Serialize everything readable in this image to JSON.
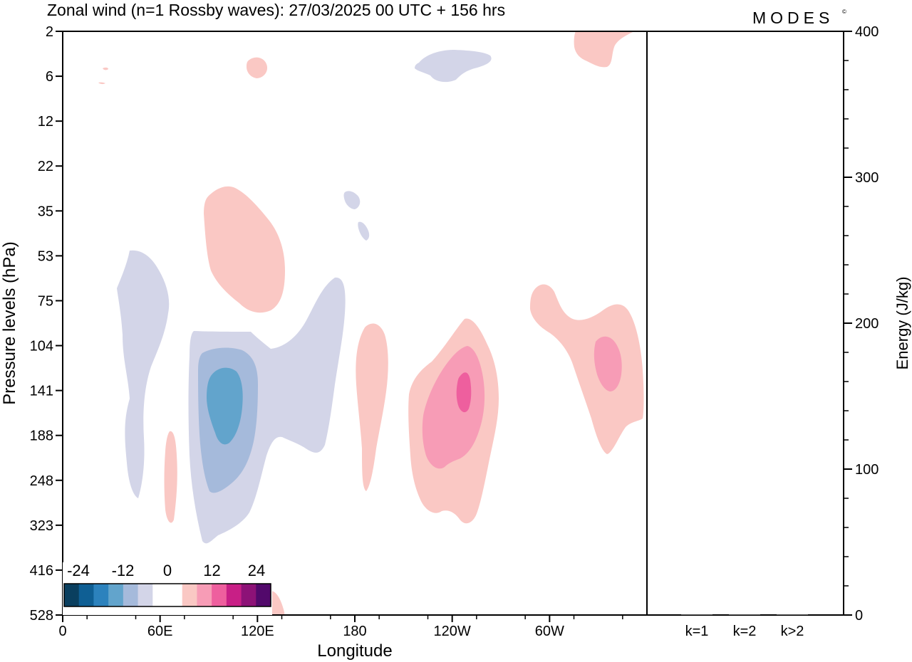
{
  "title": "Zonal wind (n=1 Rossby waves):  27/03/2025  00 UTC  + 156 hrs",
  "brand": "MODES",
  "brand_mark": "©",
  "chart_data": [
    {
      "type": "heatmap",
      "title": "Zonal wind (n=1 Rossby waves):  27/03/2025  00 UTC  + 156 hrs",
      "xlabel": "Longitude",
      "ylabel": "Pressure levels (hPa)",
      "x_ticks": [
        "0",
        "60E",
        "120E",
        "180",
        "120W",
        "60W"
      ],
      "x_tick_values": [
        0,
        60,
        120,
        180,
        240,
        300
      ],
      "xlim": [
        0,
        360
      ],
      "y_ticks": [
        "2",
        "6",
        "12",
        "22",
        "35",
        "53",
        "75",
        "104",
        "141",
        "188",
        "248",
        "323",
        "416",
        "528"
      ],
      "y_scale": "categorical pressure levels (top = 2 hPa)",
      "colorbar": {
        "labels": [
          "-24",
          "-12",
          "0",
          "12",
          "24"
        ],
        "label_values": [
          -24,
          -12,
          0,
          12,
          24
        ],
        "colors": [
          "#0a3f5f",
          "#0f5f94",
          "#2c82bd",
          "#62a4cc",
          "#a5badb",
          "#d3d5e8",
          "#ffffff",
          "#ffffff",
          "#fac8c4",
          "#f79cb6",
          "#ee5f9e",
          "#c81f86",
          "#8d1277",
          "#52096b"
        ]
      },
      "contour_regions": [
        {
          "sign": "negative",
          "level": -4,
          "lon_range": [
            30,
            65
          ],
          "p_range": [
            "53",
            "248"
          ]
        },
        {
          "sign": "negative",
          "level": -4,
          "lon_range": [
            78,
            172
          ],
          "p_range": [
            "75",
            "323"
          ]
        },
        {
          "sign": "negative",
          "level": -8,
          "lon_range": [
            83,
            118
          ],
          "p_range": [
            "119",
            "260"
          ]
        },
        {
          "sign": "negative",
          "level": -12,
          "lon_range": [
            88,
            108
          ],
          "p_range": [
            "130",
            "200"
          ]
        },
        {
          "sign": "negative",
          "level": -4,
          "lon_range": [
            217,
            264
          ],
          "p_range": [
            "4",
            "8"
          ]
        },
        {
          "sign": "positive",
          "level": 4,
          "lon_range": [
            87,
            138
          ],
          "p_range": [
            "28",
            "80"
          ]
        },
        {
          "sign": "positive",
          "level": 4,
          "lon_range": [
            64,
            70
          ],
          "p_range": [
            "170",
            "323"
          ]
        },
        {
          "sign": "positive",
          "level": 4,
          "lon_range": [
            181,
            201
          ],
          "p_range": [
            "104",
            "248"
          ]
        },
        {
          "sign": "positive",
          "level": 4,
          "lon_range": [
            212,
            265
          ],
          "p_range": [
            "92",
            "323"
          ]
        },
        {
          "sign": "positive",
          "level": 8,
          "lon_range": [
            222,
            258
          ],
          "p_range": [
            "112",
            "215"
          ]
        },
        {
          "sign": "positive",
          "level": 12,
          "lon_range": [
            242,
            251
          ],
          "p_range": [
            "128",
            "165"
          ]
        },
        {
          "sign": "positive",
          "level": 4,
          "lon_range": [
            288,
            357
          ],
          "p_range": [
            "70",
            "188"
          ]
        },
        {
          "sign": "positive",
          "level": 8,
          "lon_range": [
            326,
            344
          ],
          "p_range": [
            "99",
            "138"
          ]
        },
        {
          "sign": "positive",
          "level": 4,
          "lon_range": [
            315,
            352
          ],
          "p_range": [
            "2",
            "6"
          ]
        },
        {
          "sign": "positive",
          "level": 4,
          "lon_range": [
            113,
            126
          ],
          "p_range": [
            "4",
            "8"
          ]
        },
        {
          "sign": "positive",
          "level": 4,
          "lon_range": [
            126,
            135
          ],
          "p_range": [
            "480",
            "528"
          ]
        }
      ]
    },
    {
      "type": "bar",
      "xlabel": "",
      "ylabel": "Energy (J/kg)",
      "categories": [
        "k=1",
        "k=2",
        "k>2"
      ],
      "values": [
        0,
        0,
        0
      ],
      "ylim": [
        0,
        400
      ],
      "y_ticks": [
        "0",
        "100",
        "200",
        "300",
        "400"
      ]
    }
  ]
}
